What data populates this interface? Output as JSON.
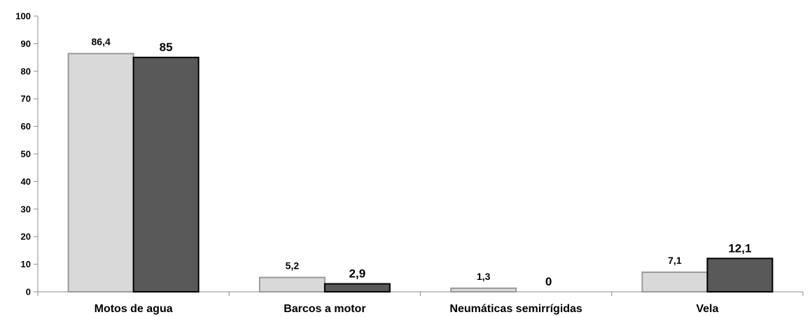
{
  "chart_data": {
    "type": "bar",
    "categories": [
      "Motos de agua",
      "Barcos a motor",
      "Neumáticas semirrígidas",
      "Vela"
    ],
    "series": [
      {
        "values": [
          86.4,
          5.2,
          1.3,
          7.1
        ],
        "labels": [
          "86,4",
          "5,2",
          "1,3",
          "7,1"
        ],
        "color": "#d9d9d9"
      },
      {
        "values": [
          85,
          2.9,
          0,
          12.1
        ],
        "labels": [
          "85",
          "2,9",
          "0",
          "12,1"
        ],
        "color": "#595959"
      }
    ],
    "title": "",
    "xlabel": "",
    "ylabel": "",
    "ylim": [
      0,
      100
    ],
    "yticks": [
      0,
      10,
      20,
      30,
      40,
      50,
      60,
      70,
      80,
      90,
      100
    ],
    "grid": false,
    "legend": "none"
  }
}
